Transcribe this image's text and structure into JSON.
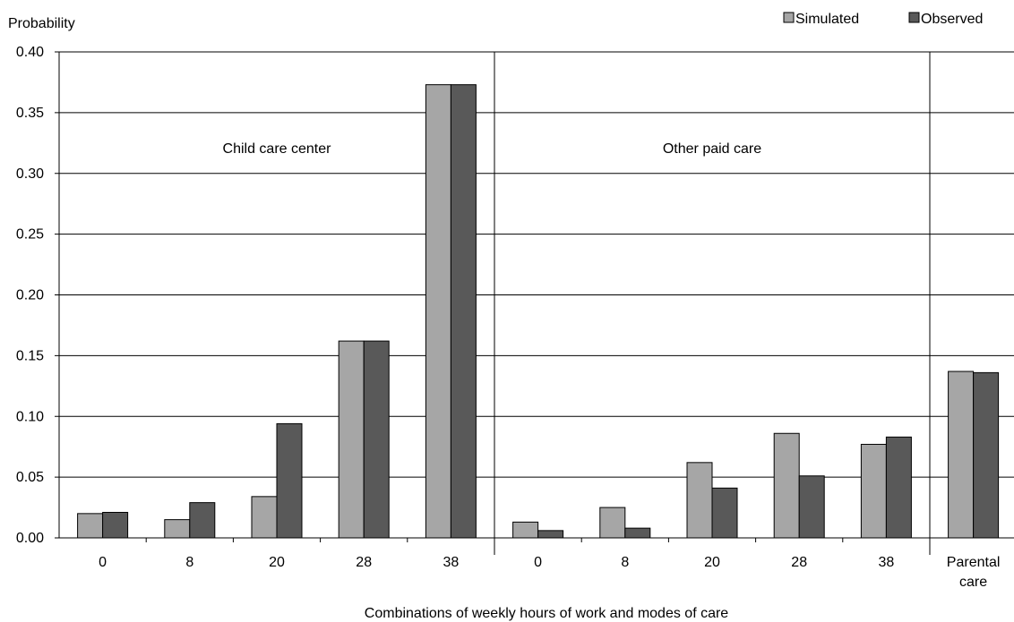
{
  "chart_data": {
    "type": "bar",
    "ylabel": "Probability",
    "xlabel": "Combinations of weekly hours of work and modes of care",
    "ylim": [
      0,
      0.4
    ],
    "yticks": [
      "0.00",
      "0.05",
      "0.10",
      "0.15",
      "0.20",
      "0.25",
      "0.30",
      "0.35",
      "0.40"
    ],
    "ytick_values": [
      0,
      0.05,
      0.1,
      0.15,
      0.2,
      0.25,
      0.3,
      0.35,
      0.4
    ],
    "grid": true,
    "legend_position": "top-right",
    "categories": [
      "0",
      "8",
      "20",
      "28",
      "38",
      "0",
      "8",
      "20",
      "28",
      "38",
      "Parental care"
    ],
    "category_label_lines": [
      [
        "0"
      ],
      [
        "8"
      ],
      [
        "20"
      ],
      [
        "28"
      ],
      [
        "38"
      ],
      [
        "0"
      ],
      [
        "8"
      ],
      [
        "20"
      ],
      [
        "28"
      ],
      [
        "38"
      ],
      [
        "Parental",
        "care"
      ]
    ],
    "groups": [
      {
        "label": "Child care center",
        "categories": 5
      },
      {
        "label": "Other paid care",
        "categories": 5
      },
      {
        "label": "",
        "categories": 1
      }
    ],
    "series": [
      {
        "name": "Simulated",
        "color": "#a6a6a6",
        "values": [
          0.02,
          0.015,
          0.034,
          0.162,
          0.373,
          0.013,
          0.025,
          0.062,
          0.086,
          0.077,
          0.137
        ]
      },
      {
        "name": "Observed",
        "color": "#595959",
        "values": [
          0.021,
          0.029,
          0.094,
          0.162,
          0.373,
          0.006,
          0.008,
          0.041,
          0.051,
          0.083,
          0.136
        ]
      }
    ]
  }
}
